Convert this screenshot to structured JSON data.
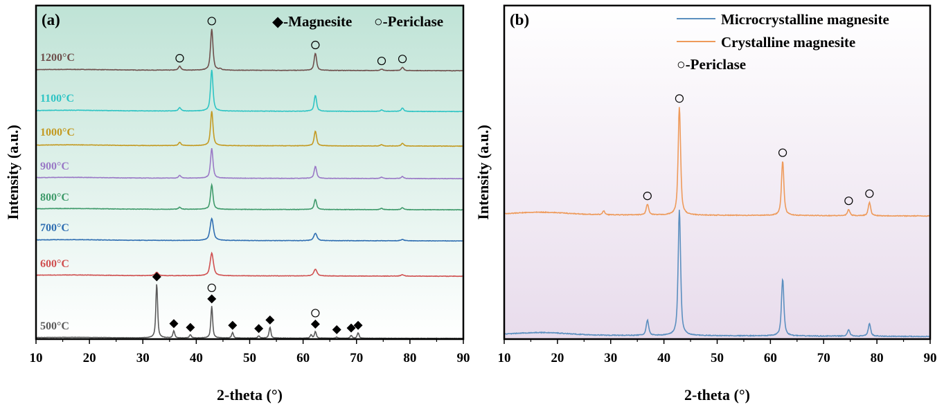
{
  "chart_data": [
    {
      "panel": "a",
      "type": "line",
      "panel_label": "(a)",
      "title": "",
      "xlabel": "2-theta (°)",
      "ylabel": "Intensity (a.u.)",
      "xlim": [
        10,
        90
      ],
      "xticks": [
        10,
        20,
        30,
        40,
        50,
        60,
        70,
        80,
        90
      ],
      "grid": false,
      "background_gradient": [
        "#bfe3d6",
        "#ffffff"
      ],
      "legend_text": {
        "magnesite": "◆-Magnesite",
        "periclase": "○-Periclase"
      },
      "series": [
        {
          "name": "1200°C",
          "color": "#6e4f4c",
          "offset": 7,
          "peaks": [
            [
              36.9,
              0.06
            ],
            [
              42.9,
              0.62
            ],
            [
              44.5,
              0.02
            ],
            [
              62.3,
              0.26
            ],
            [
              74.7,
              0.02
            ],
            [
              78.6,
              0.05
            ]
          ],
          "markers": [
            {
              "symbol": "periclase",
              "x": 36.9
            },
            {
              "symbol": "periclase",
              "x": 42.9
            },
            {
              "symbol": "periclase",
              "x": 62.3
            },
            {
              "symbol": "periclase",
              "x": 74.7
            },
            {
              "symbol": "periclase",
              "x": 78.6
            }
          ]
        },
        {
          "name": "1100°C",
          "color": "#2ec4c4",
          "offset": 6,
          "peaks": [
            [
              36.9,
              0.05
            ],
            [
              42.9,
              0.62
            ],
            [
              62.3,
              0.24
            ],
            [
              74.7,
              0.02
            ],
            [
              78.6,
              0.05
            ]
          ],
          "markers": []
        },
        {
          "name": "1000°C",
          "color": "#c39a22",
          "offset": 5,
          "peaks": [
            [
              36.9,
              0.05
            ],
            [
              42.9,
              0.52
            ],
            [
              62.3,
              0.22
            ],
            [
              74.7,
              0.02
            ],
            [
              78.6,
              0.04
            ]
          ],
          "markers": []
        },
        {
          "name": "900°C",
          "color": "#9a79c6",
          "offset": 4,
          "peaks": [
            [
              36.9,
              0.04
            ],
            [
              42.9,
              0.45
            ],
            [
              62.3,
              0.18
            ],
            [
              74.7,
              0.02
            ],
            [
              78.6,
              0.03
            ]
          ],
          "markers": []
        },
        {
          "name": "800°C",
          "color": "#3e9a6a",
          "offset": 3,
          "peaks": [
            [
              36.9,
              0.03
            ],
            [
              42.9,
              0.37
            ],
            [
              62.3,
              0.15
            ],
            [
              74.7,
              0.02
            ],
            [
              78.6,
              0.03
            ]
          ],
          "markers": []
        },
        {
          "name": "700°C",
          "color": "#2f6eb2",
          "offset": 2,
          "peaks": [
            [
              42.9,
              0.33
            ],
            [
              62.3,
              0.11
            ],
            [
              78.6,
              0.02
            ]
          ],
          "markers": []
        },
        {
          "name": "600°C",
          "color": "#d05050",
          "offset": 1,
          "peaks": [
            [
              32.6,
              0.05
            ],
            [
              42.9,
              0.34
            ],
            [
              62.3,
              0.1
            ],
            [
              78.6,
              0.02
            ]
          ],
          "markers": []
        },
        {
          "name": "500°C",
          "color": "#5a5a5a",
          "offset": 0,
          "peaks": [
            [
              32.6,
              1.0
            ],
            [
              35.8,
              0.13
            ],
            [
              38.9,
              0.06
            ],
            [
              42.9,
              0.59
            ],
            [
              46.8,
              0.1
            ],
            [
              51.7,
              0.04
            ],
            [
              53.8,
              0.2
            ],
            [
              61.5,
              0.06
            ],
            [
              62.3,
              0.12
            ],
            [
              66.3,
              0.02
            ],
            [
              69.0,
              0.05
            ],
            [
              70.3,
              0.1
            ]
          ],
          "markers": [
            {
              "symbol": "magnesite",
              "x": 32.6
            },
            {
              "symbol": "magnesite",
              "x": 35.8
            },
            {
              "symbol": "magnesite",
              "x": 38.9
            },
            {
              "symbol": "magnesite",
              "x": 42.9
            },
            {
              "symbol": "periclase",
              "x": 42.9
            },
            {
              "symbol": "magnesite",
              "x": 46.8
            },
            {
              "symbol": "magnesite",
              "x": 51.7
            },
            {
              "symbol": "magnesite",
              "x": 53.8
            },
            {
              "symbol": "magnesite",
              "x": 62.3
            },
            {
              "symbol": "periclase",
              "x": 62.3
            },
            {
              "symbol": "magnesite",
              "x": 66.3
            },
            {
              "symbol": "magnesite",
              "x": 69.0
            },
            {
              "symbol": "magnesite",
              "x": 70.3
            }
          ]
        }
      ]
    },
    {
      "panel": "b",
      "type": "line",
      "panel_label": "(b)",
      "title": "",
      "xlabel": "2-theta (°)",
      "ylabel": "Intensity (a.u.)",
      "xlim": [
        10,
        90
      ],
      "xticks": [
        10,
        20,
        30,
        40,
        50,
        60,
        70,
        80,
        90
      ],
      "grid": false,
      "background_gradient": [
        "#ffffff",
        "#e8dcec"
      ],
      "legend": {
        "position": "top-right",
        "entries": [
          "Microcrystalline magnesite",
          "Crystalline magnesite"
        ],
        "periclase_note": "○-Periclase"
      },
      "series": [
        {
          "name": "Crystalline magnesite",
          "color": "#ee9a5a",
          "offset": 1,
          "peaks": [
            [
              28.7,
              0.03
            ],
            [
              36.9,
              0.09
            ],
            [
              42.9,
              0.9
            ],
            [
              62.3,
              0.45
            ],
            [
              74.7,
              0.05
            ],
            [
              78.6,
              0.11
            ]
          ],
          "markers": [
            {
              "symbol": "periclase",
              "x": 36.9
            },
            {
              "symbol": "periclase",
              "x": 42.9
            },
            {
              "symbol": "periclase",
              "x": 62.3
            },
            {
              "symbol": "periclase",
              "x": 74.7
            },
            {
              "symbol": "periclase",
              "x": 78.6
            }
          ]
        },
        {
          "name": "Microcrystalline magnesite",
          "color": "#5b8fbf",
          "offset": 0,
          "peaks": [
            [
              36.9,
              0.12
            ],
            [
              42.9,
              1.0
            ],
            [
              62.3,
              0.45
            ],
            [
              74.7,
              0.05
            ],
            [
              78.6,
              0.1
            ]
          ],
          "markers": []
        }
      ]
    }
  ]
}
